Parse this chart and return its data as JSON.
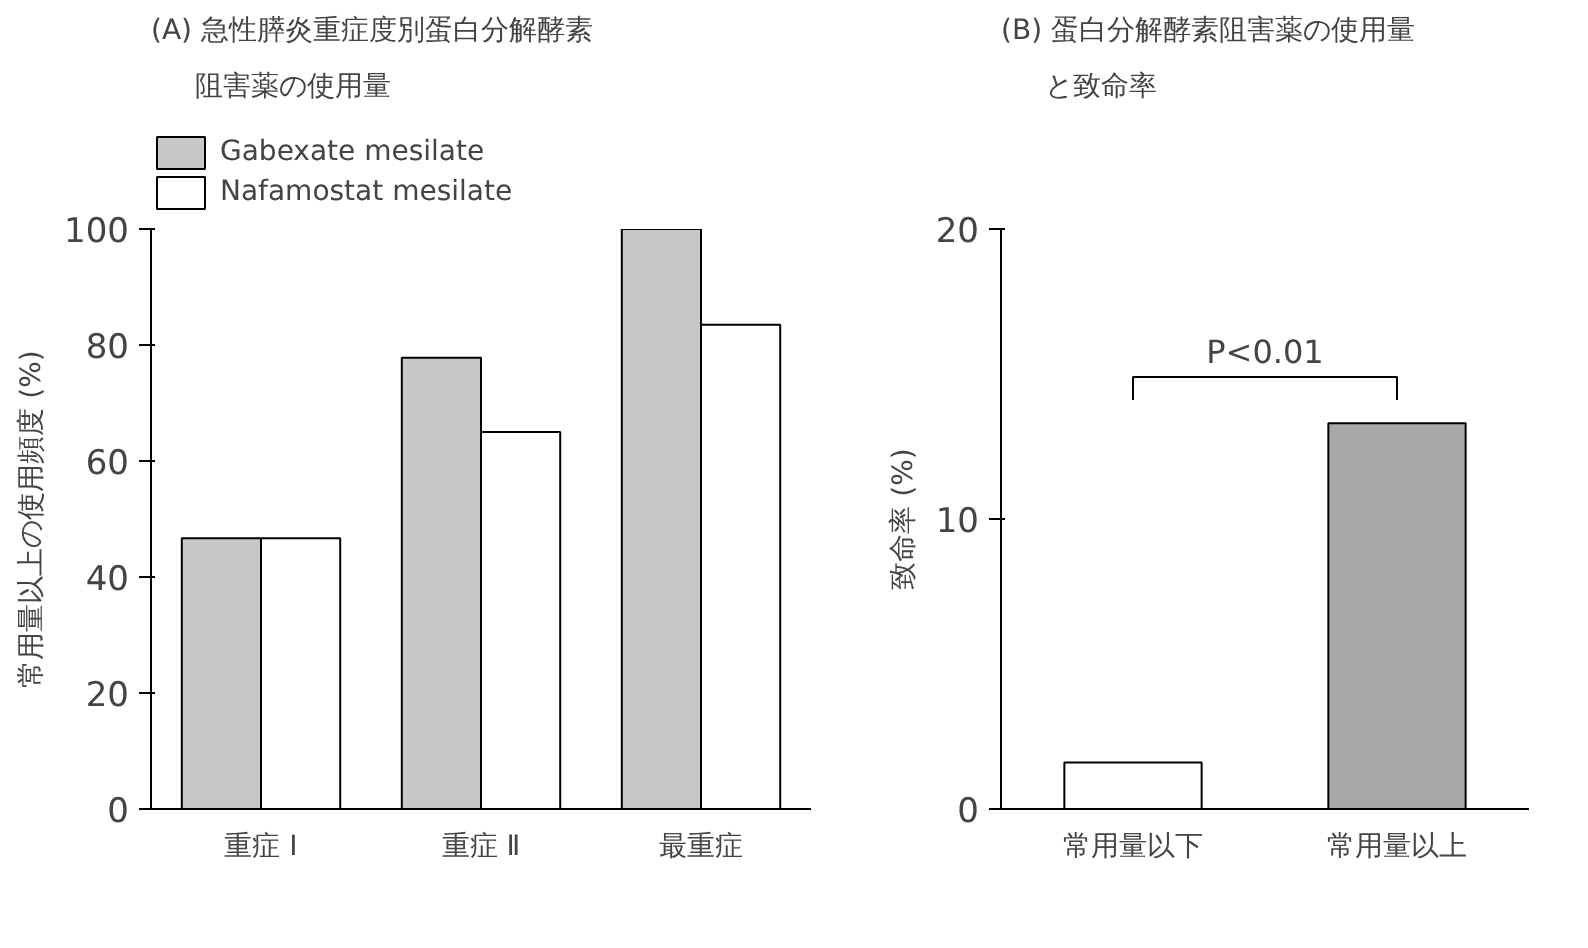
{
  "chart_data": [
    {
      "type": "bar",
      "title": "(A) 急性膵炎重症度別蛋白分解酵素",
      "subtitle": "阻害薬の使用量",
      "ylabel": "常用量以上の使用頻度 (%)",
      "categories": [
        "重症 Ⅰ",
        "重症 Ⅱ",
        "最重症"
      ],
      "series": [
        {
          "name": "Gabexate mesilate",
          "color": "#c8c8c8",
          "values": [
            46.7,
            77.8,
            100
          ]
        },
        {
          "name": "Nafamostat mesilate",
          "color": "#ffffff",
          "values": [
            46.7,
            65,
            83.5
          ]
        }
      ],
      "ylim": [
        0,
        100
      ],
      "yticks": [
        0,
        20,
        40,
        60,
        80,
        100
      ],
      "legend": "top left",
      "grid": false
    },
    {
      "type": "bar",
      "title": "(B) 蛋白分解酵素阻害薬の使用量",
      "subtitle": "と致命率",
      "ylabel": "致命率 (%)",
      "categories": [
        "常用量以下",
        "常用量以上"
      ],
      "values": [
        1.6,
        13.3
      ],
      "colors": [
        "#ffffff",
        "#a8a8a8"
      ],
      "ylim": [
        0,
        20
      ],
      "yticks": [
        0,
        10,
        20
      ],
      "grid": false,
      "annotations": [
        "P<0.01"
      ]
    }
  ]
}
